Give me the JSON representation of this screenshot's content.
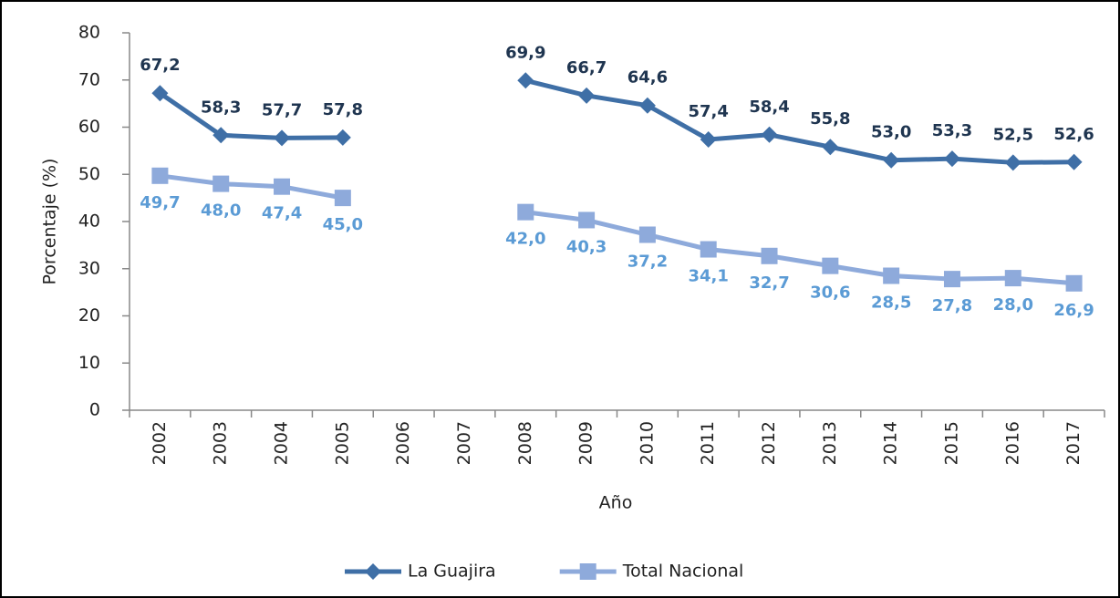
{
  "chart_data": {
    "type": "line",
    "x_label": "Año",
    "y_label": "Porcentaje (%)",
    "categories": [
      "2002",
      "2003",
      "2004",
      "2005",
      "2006",
      "2007",
      "2008",
      "2009",
      "2010",
      "2011",
      "2012",
      "2013",
      "2014",
      "2015",
      "2016",
      "2017"
    ],
    "series": [
      {
        "name": "La Guajira",
        "color": "#3f6fa6",
        "label_color": "#1f3550",
        "marker": "diamond",
        "values": [
          67.2,
          58.3,
          57.7,
          57.8,
          null,
          null,
          69.9,
          66.7,
          64.6,
          57.4,
          58.4,
          55.8,
          53.0,
          53.3,
          52.5,
          52.6
        ],
        "value_labels": [
          "67,2",
          "58,3",
          "57,7",
          "57,8",
          null,
          null,
          "69,9",
          "66,7",
          "64,6",
          "57,4",
          "58,4",
          "55,8",
          "53,0",
          "53,3",
          "52,5",
          "52,6"
        ]
      },
      {
        "name": "Total Nacional",
        "color": "#8eaadb",
        "label_color": "#5b9bd5",
        "marker": "square",
        "values": [
          49.7,
          48.0,
          47.4,
          45.0,
          null,
          null,
          42.0,
          40.3,
          37.2,
          34.1,
          32.7,
          30.6,
          28.5,
          27.8,
          28.0,
          26.9
        ],
        "value_labels": [
          "49,7",
          "48,0",
          "47,4",
          "45,0",
          null,
          null,
          "42,0",
          "40,3",
          "37,2",
          "34,1",
          "32,7",
          "30,6",
          "28,5",
          "27,8",
          "28,0",
          "26,9"
        ]
      }
    ],
    "ylim": [
      0,
      80
    ],
    "yticks": [
      0,
      10,
      20,
      30,
      40,
      50,
      60,
      70,
      80
    ],
    "legend": "bottom"
  }
}
